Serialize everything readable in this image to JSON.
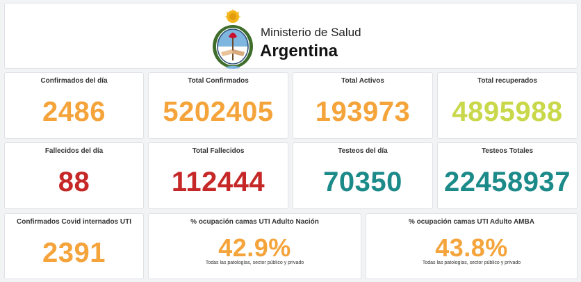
{
  "header": {
    "ministry": "Ministerio de Salud",
    "country": "Argentina"
  },
  "colors": {
    "orange": "#f4a43b",
    "lime": "#c9d84a",
    "red": "#c62828",
    "teal": "#1d8a8a"
  },
  "stats": [
    {
      "label": "Confirmados del día",
      "value": "2486",
      "color": "orange"
    },
    {
      "label": "Total Confirmados",
      "value": "5202405",
      "color": "orange"
    },
    {
      "label": "Total Activos",
      "value": "193973",
      "color": "orange"
    },
    {
      "label": "Total recuperados",
      "value": "4895988",
      "color": "lime"
    },
    {
      "label": "Fallecidos del día",
      "value": "88",
      "color": "red"
    },
    {
      "label": "Total Fallecidos",
      "value": "112444",
      "color": "red"
    },
    {
      "label": "Testeos del día",
      "value": "70350",
      "color": "teal"
    },
    {
      "label": "Testeos Totales",
      "value": "22458937",
      "color": "teal"
    },
    {
      "label": "Confirmados Covid internados UTI",
      "value": "2391",
      "color": "orange"
    }
  ],
  "occupancy": [
    {
      "label": "% ocupación camas UTI Adulto Nación",
      "value": "42.9%",
      "note": "Todas las patologías, sector público y privado",
      "color": "orange"
    },
    {
      "label": "% ocupación camas UTI Adulto AMBA",
      "value": "43.8%",
      "note": "Todas las patologías, sector público y privado",
      "color": "orange"
    }
  ]
}
